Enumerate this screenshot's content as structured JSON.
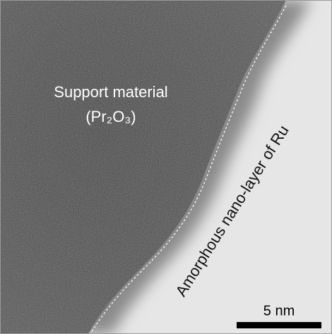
{
  "labels": {
    "material": "Support material",
    "formula": "(Pr₂O₃)",
    "layer": "Amorphous nano-layer of Ru",
    "scale_bar": "5 nm"
  }
}
